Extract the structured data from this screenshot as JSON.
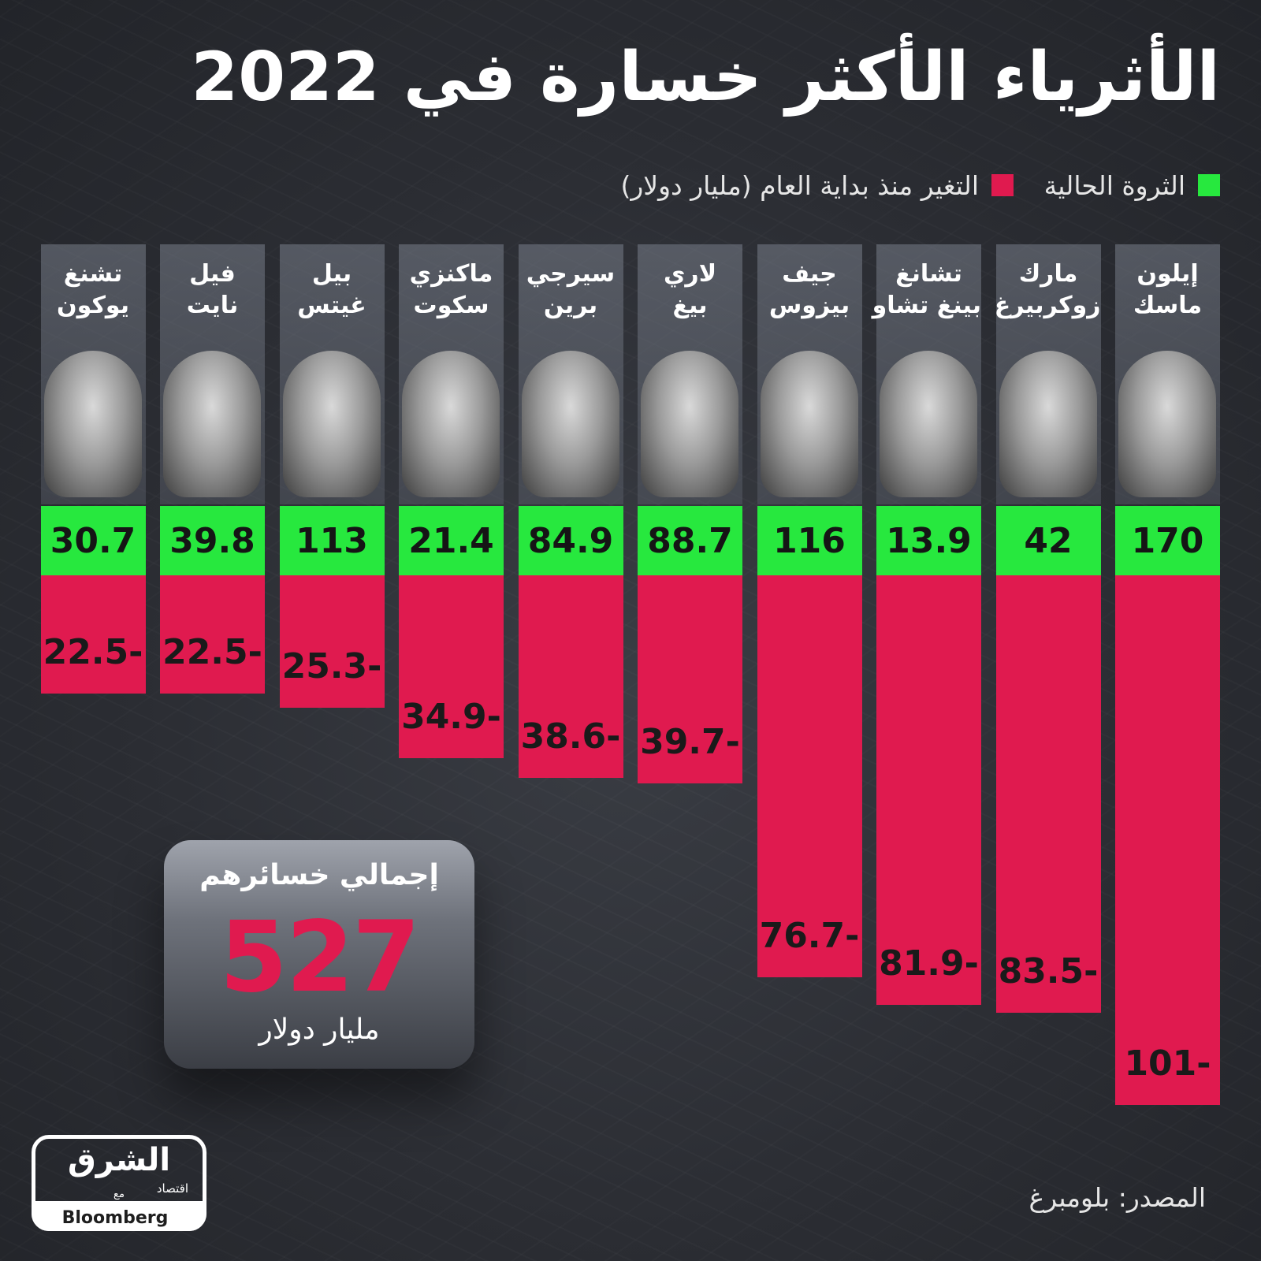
{
  "header": {
    "title": "الأثرياء الأكثر خسارة في 2022"
  },
  "legend": {
    "current_wealth_label": "الثروة الحالية",
    "change_label": "التغير منذ بداية العام (مليار دولار)"
  },
  "total": {
    "heading": "إجمالي خسائرهم",
    "value": "527",
    "unit": "مليار دولار"
  },
  "footer": {
    "source": "المصدر: بلومبرغ",
    "logo_main": "الشرق",
    "logo_sub": "اقتصاد",
    "logo_with": "مع",
    "logo_partner": "Bloomberg"
  },
  "colors": {
    "wealth": "#27e83e",
    "loss": "#e01a4f",
    "background": "#2b2d33"
  },
  "chart_data": {
    "type": "bar",
    "title": "الأثرياء الأكثر خسارة في 2022",
    "unit": "مليار دولار",
    "categories": [
      {
        "line1": "إيلون",
        "line2": "ماسك"
      },
      {
        "line1": "مارك",
        "line2": "زوكربيرغ"
      },
      {
        "line1": "تشانغ",
        "line2": "بينغ تشاو"
      },
      {
        "line1": "جيف",
        "line2": "بيزوس"
      },
      {
        "line1": "لاري",
        "line2": "بيغ"
      },
      {
        "line1": "سيرجي",
        "line2": "برين"
      },
      {
        "line1": "ماكنزي",
        "line2": "سكوت"
      },
      {
        "line1": "بيل",
        "line2": "غيتس"
      },
      {
        "line1": "فيل",
        "line2": "نايت"
      },
      {
        "line1": "تشنغ",
        "line2": "يوكون"
      }
    ],
    "series": [
      {
        "name": "الثروة الحالية",
        "values": [
          170,
          42,
          13.9,
          116,
          88.7,
          84.9,
          21.4,
          113,
          39.8,
          30.7
        ]
      },
      {
        "name": "التغير منذ بداية العام (مليار دولار)",
        "values": [
          -101,
          -83.5,
          -81.9,
          -76.7,
          -39.7,
          -38.6,
          -34.9,
          -25.3,
          -22.5,
          -22.5
        ]
      }
    ],
    "wealth_labels": [
      "170",
      "42",
      "13.9",
      "116",
      "88.7",
      "84.9",
      "21.4",
      "113",
      "39.8",
      "30.7"
    ],
    "change_labels": [
      "101-",
      "83.5-",
      "81.9-",
      "76.7-",
      "39.7-",
      "38.6-",
      "34.9-",
      "25.3-",
      "22.5-",
      "22.5-"
    ],
    "layout_order": "right-to-left"
  }
}
